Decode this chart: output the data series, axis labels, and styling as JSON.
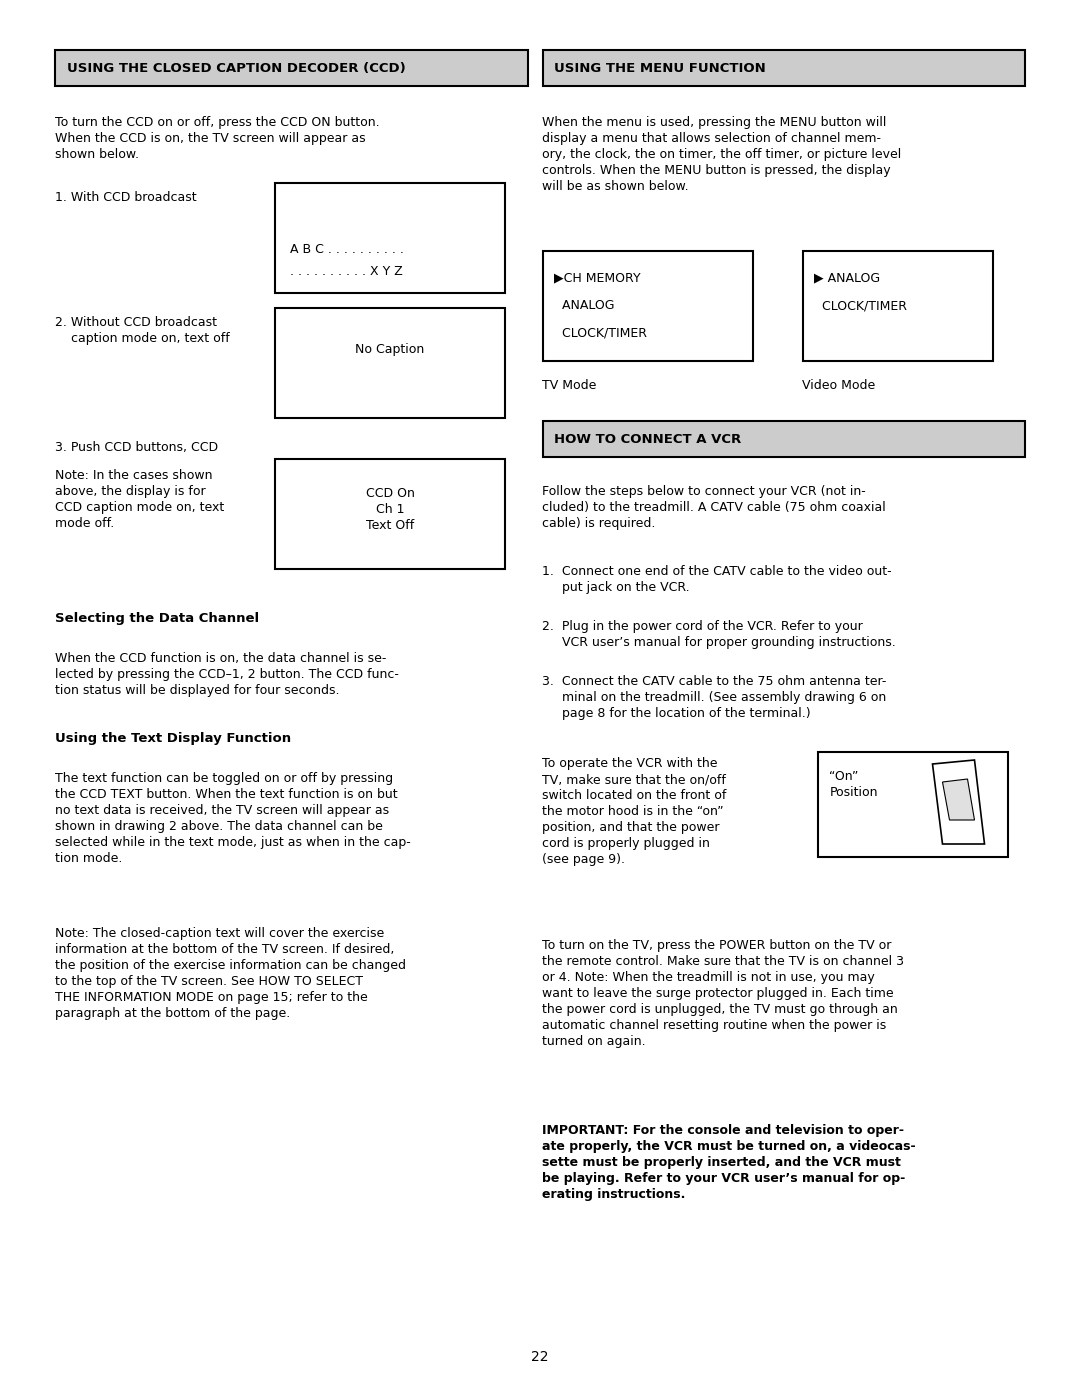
{
  "page_number": "22",
  "bg_color": "#ffffff",
  "left_header": "USING THE CLOSED CAPTION DECODER (CCD)",
  "right_header": "USING THE MENU FUNCTION",
  "vcr_header": "HOW TO CONNECT A VCR",
  "header_bg": "#cccccc",
  "left_body_para1": "To turn the CCD on or off, press the CCD ON button.\nWhen the CCD is on, the TV screen will appear as\nshown below.",
  "item1_label": "1. With CCD broadcast",
  "item1_line1": "A B C . . . . . . . . . .",
  "item1_line2": ". . . . . . . . . . X Y Z",
  "item2_label": "2. Without CCD broadcast\n    caption mode on, text off",
  "item2_box_text": "No Caption",
  "item3_label": "3. Push CCD buttons, CCD",
  "item3_box_text": "CCD On\nCh 1\nText Off",
  "note_text": "Note: In the cases shown\nabove, the display is for\nCCD caption mode on, text\nmode off.",
  "selecting_header": "Selecting the Data Channel",
  "selecting_body": "When the CCD function is on, the data channel is se-\nlected by pressing the CCD–1, 2 button. The CCD func-\ntion status will be displayed for four seconds.",
  "text_display_header": "Using the Text Display Function",
  "text_display_body": "The text function can be toggled on or off by pressing\nthe CCD TEXT button. When the text function is on but\nno text data is received, the TV screen will appear as\nshown in drawing 2 above. The data channel can be\nselected while in the text mode, just as when in the cap-\ntion mode.",
  "note2_text": "Note: The closed-caption text will cover the exercise\ninformation at the bottom of the TV screen. If desired,\nthe position of the exercise information can be changed\nto the top of the TV screen. See HOW TO SELECT\nTHE INFORMATION MODE on page 15; refer to the\nparagraph at the bottom of the page.",
  "right_body_para1": "When the menu is used, pressing the MENU button will\ndisplay a menu that allows selection of channel mem-\nory, the clock, the on timer, the off timer, or picture level\ncontrols. When the MENU button is pressed, the display\nwill be as shown below.",
  "menu_box1_line1": "▶CH MEMORY",
  "menu_box1_line2": "  ANALOG",
  "menu_box1_line3": "  CLOCK/TIMER",
  "menu_box2_line1": "▶ ANALOG",
  "menu_box2_line2": "  CLOCK/TIMER",
  "tv_mode_label": "TV Mode",
  "video_mode_label": "Video Mode",
  "vcr_body": "Follow the steps below to connect your VCR (not in-\ncluded) to the treadmill. A CATV cable (75 ohm coaxial\ncable) is required.",
  "vcr_step1": "1.  Connect one end of the CATV cable to the video out-\n     put jack on the VCR.",
  "vcr_step2": "2.  Plug in the power cord of the VCR. Refer to your\n     VCR user’s manual for proper grounding instructions.",
  "vcr_step3": "3.  Connect the CATV cable to the 75 ohm antenna ter-\n     minal on the treadmill. (See assembly drawing 6 on\n     page 8 for the location of the terminal.)",
  "vcr_operate": "To operate the VCR with the\nTV, make sure that the on/off\nswitch located on the front of\nthe motor hood is in the “on”\nposition, and that the power\ncord is properly plugged in\n(see page 9).",
  "on_position_label": "“On”\nPosition",
  "vcr_turn_on": "To turn on the TV, press the POWER button on the TV or\nthe remote control. Make sure that the TV is on channel 3\nor 4. Note: When the treadmill is not in use, you may\nwant to leave the surge protector plugged in. Each time\nthe power cord is unplugged, the TV must go through an\nautomatic channel resetting routine when the power is\nturned on again.",
  "vcr_important": "IMPORTANT: For the console and television to oper-\nate properly, the VCR must be turned on, a videocas-\nsette must be properly inserted, and the VCR must\nbe playing. Refer to your VCR user’s manual for op-\nerating instructions."
}
